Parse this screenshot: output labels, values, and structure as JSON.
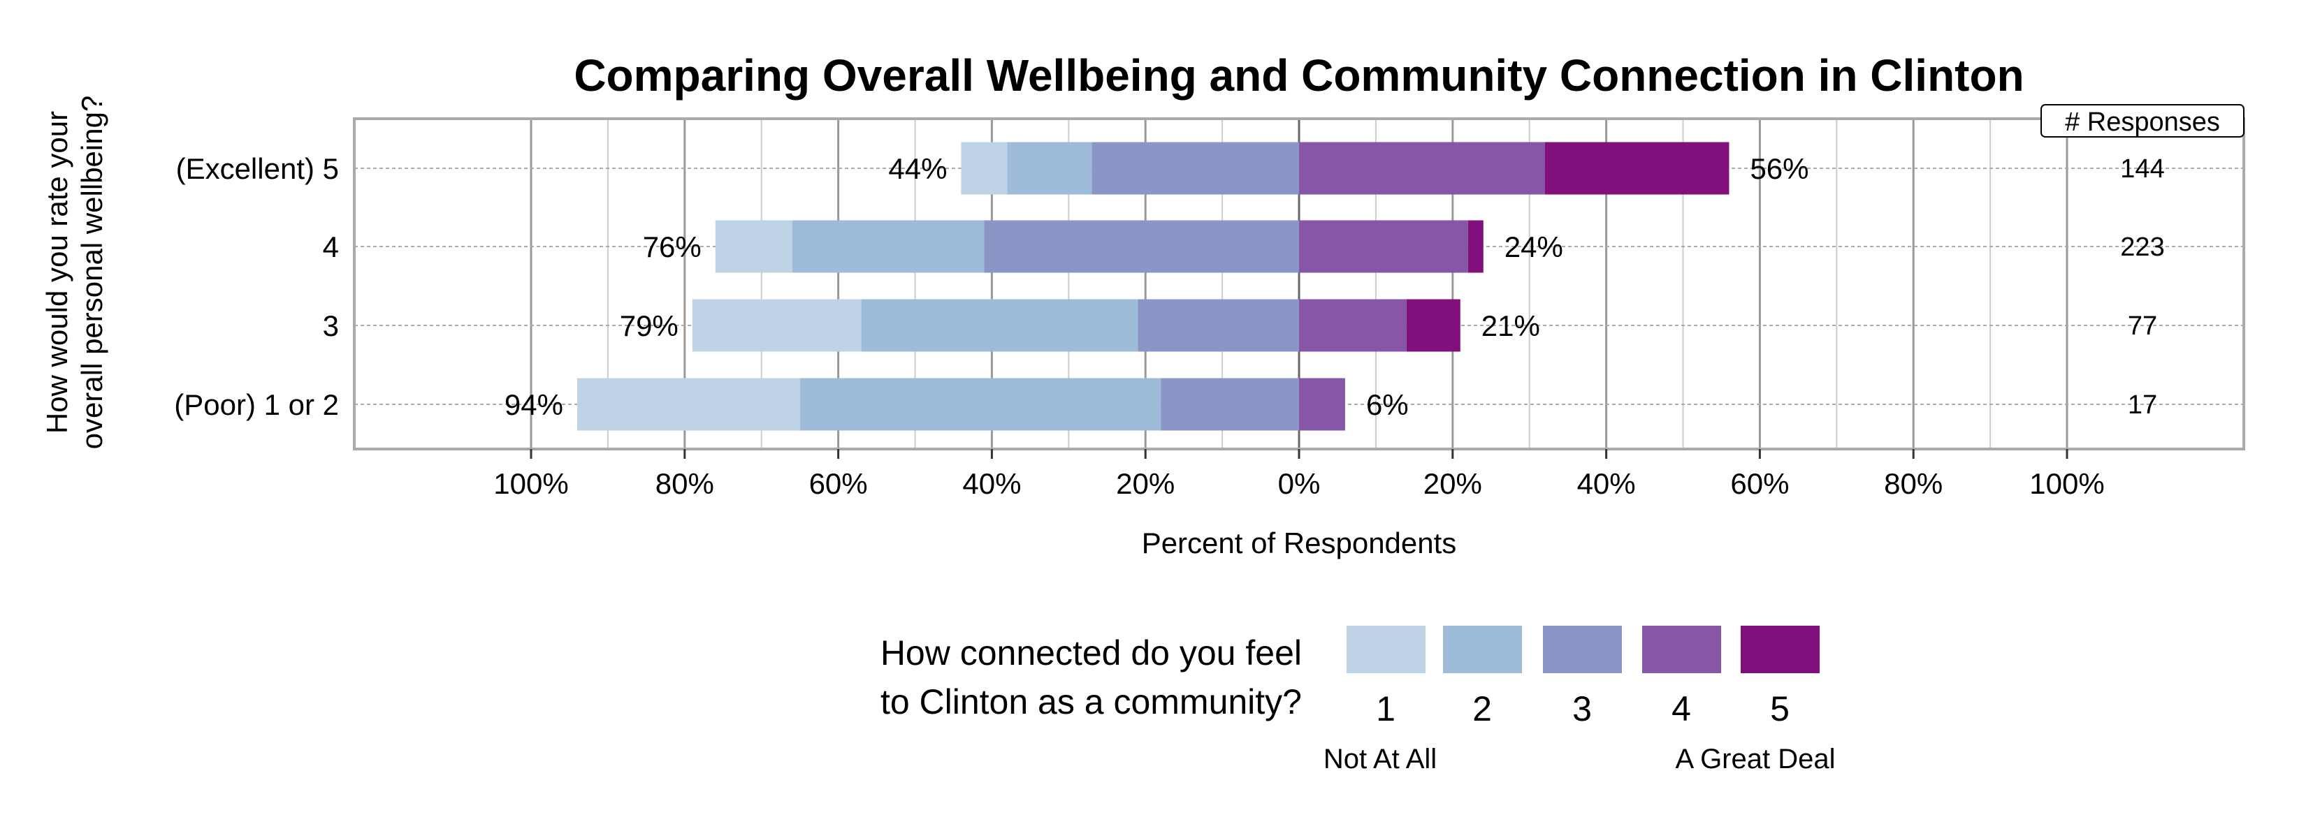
{
  "chart_data": {
    "type": "bar",
    "orientation": "horizontal-diverging-stacked",
    "title": "Comparing Overall Wellbeing and Community Connection in Clinton",
    "ylabel": "How would you rate your overall personal wellbeing?",
    "ylabel_lines": [
      "How would you rate your",
      "overall personal wellbeing?"
    ],
    "xlabel": "Percent of Respondents",
    "xlim": [
      -100,
      100
    ],
    "x_tick_labels": [
      "100%",
      "80%",
      "60%",
      "40%",
      "20%",
      "0%",
      "20%",
      "40%",
      "60%",
      "80%",
      "100%"
    ],
    "x_ticks": [
      -100,
      -80,
      -60,
      -40,
      -20,
      0,
      20,
      40,
      60,
      80,
      100
    ],
    "grid": true,
    "categories": [
      "(Excellent) 5",
      "4",
      "3",
      "(Poor) 1 or 2"
    ],
    "series": [
      {
        "name": "1",
        "color": "#bfd3e6",
        "values": [
          6,
          10,
          22,
          29
        ]
      },
      {
        "name": "2",
        "color": "#9ebcda",
        "values": [
          11,
          25,
          36,
          47
        ]
      },
      {
        "name": "3",
        "color": "#8c96c6",
        "values": [
          27,
          41,
          21,
          18
        ]
      },
      {
        "name": "4",
        "color": "#8856a7",
        "values": [
          32,
          22,
          14,
          6
        ]
      },
      {
        "name": "5",
        "color": "#810f7c",
        "values": [
          24,
          2,
          7,
          0
        ]
      }
    ],
    "negative_labels": [
      "44%",
      "76%",
      "79%",
      "94%"
    ],
    "positive_labels": [
      "56%",
      "24%",
      "21%",
      "6%"
    ],
    "responses_header": "# Responses",
    "responses": [
      "144",
      "223",
      "77",
      "17"
    ],
    "legend": {
      "title_lines": [
        "How connected do you feel",
        "to Clinton as a community?"
      ],
      "placement": "bottom",
      "low_label": "Not At All",
      "high_label": "A Great Deal"
    }
  }
}
